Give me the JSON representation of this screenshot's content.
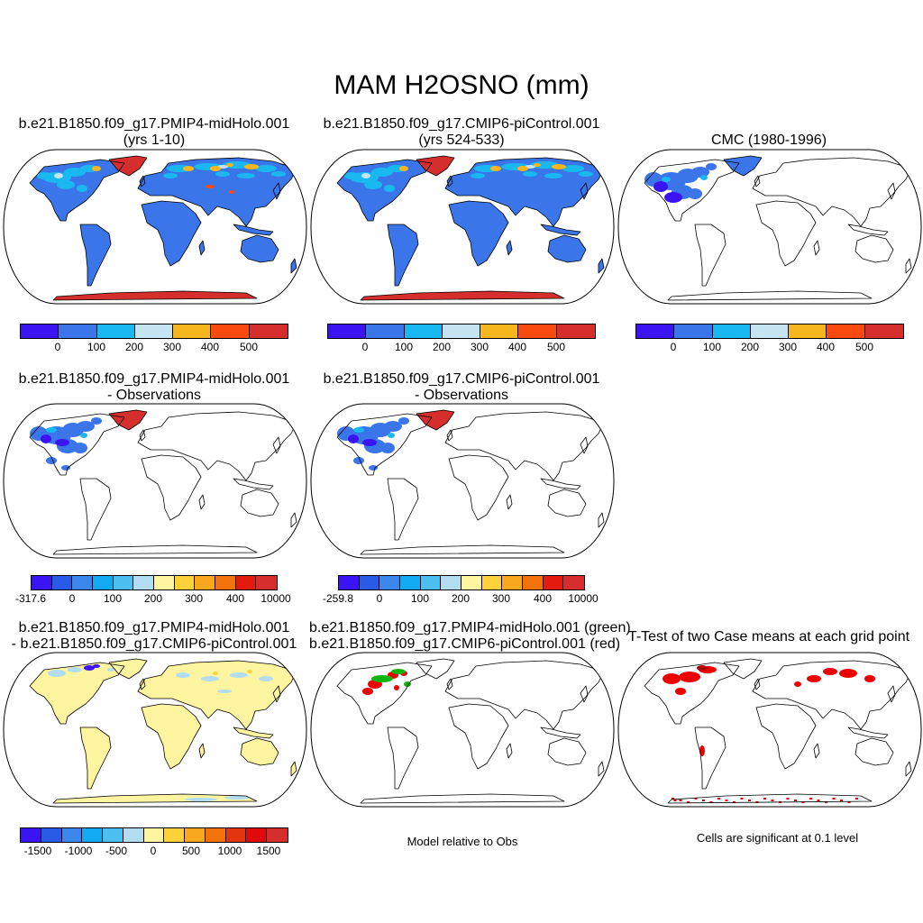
{
  "figure": {
    "title": "MAM H2OSNO (mm)"
  },
  "colors": {
    "seq7": [
      "#3a14f2",
      "#3a76ea",
      "#1ab8f0",
      "#c4e4f2",
      "#f7b61d",
      "#fa4a10",
      "#d62d2d"
    ],
    "diff12": [
      "#3a14f2",
      "#2a5ae8",
      "#3a86ec",
      "#12aaf2",
      "#4cc0f0",
      "#b2dcf0",
      "#fff4a0",
      "#ffd23c",
      "#f8a81c",
      "#f4720c",
      "#e41a0e",
      "#d62d2d"
    ],
    "diff13": [
      "#3a14f2",
      "#2a5ae8",
      "#3a86ec",
      "#12aaf2",
      "#4cc0f0",
      "#b2dcf0",
      "#fff4a0",
      "#ffd23c",
      "#f8a81c",
      "#f4720c",
      "#e4360e",
      "#e10a0a",
      "#d62d2d"
    ],
    "land_base": "#3a76ea",
    "diff_land": "#fff4a0",
    "ice_cap": "#d62d2d",
    "green_overlay": "#0fb40f",
    "red_overlay": "#ee0000"
  },
  "panels": [
    {
      "id": "p1",
      "title": [
        "b.e21.B1850.f09_g17.PMIP4-midHolo.001",
        "(yrs 1-10)"
      ],
      "colorbar": {
        "labels": [
          "0",
          "100",
          "200",
          "300",
          "400",
          "500"
        ]
      }
    },
    {
      "id": "p2",
      "title": [
        "b.e21.B1850.f09_g17.CMIP6-piControl.001",
        "(yrs 524-533)"
      ],
      "colorbar": {
        "labels": [
          "0",
          "100",
          "200",
          "300",
          "400",
          "500"
        ]
      }
    },
    {
      "id": "p3",
      "title": [
        "CMC (1980-1996)"
      ],
      "colorbar": {
        "labels": [
          "0",
          "100",
          "200",
          "300",
          "400",
          "500"
        ]
      }
    },
    {
      "id": "p4",
      "title": [
        "b.e21.B1850.f09_g17.PMIP4-midHolo.001",
        "- Observations"
      ],
      "colorbar": {
        "labels": [
          "-317.6",
          "0",
          "100",
          "200",
          "300",
          "400",
          "10000"
        ]
      }
    },
    {
      "id": "p5",
      "title": [
        "b.e21.B1850.f09_g17.CMIP6-piControl.001",
        "- Observations"
      ],
      "colorbar": {
        "labels": [
          "-259.8",
          "0",
          "100",
          "200",
          "300",
          "400",
          "10000"
        ]
      }
    },
    {
      "id": "p7",
      "title": [
        "b.e21.B1850.f09_g17.PMIP4-midHolo.001",
        "- b.e21.B1850.f09_g17.CMIP6-piControl.001"
      ],
      "colorbar": {
        "labels": [
          "-1500",
          "-1000",
          "-500",
          "0",
          "500",
          "1000",
          "1500"
        ]
      }
    },
    {
      "id": "p8",
      "title": [
        "b.e21.B1850.f09_g17.PMIP4-midHolo.001 (green)",
        "b.e21.B1850.f09_g17.CMIP6-piControl.001 (red)"
      ],
      "note": "Model relative to Obs"
    },
    {
      "id": "p9",
      "title": [
        "T-Test of two Case means at each grid point"
      ],
      "note": "Cells are significant at 0.1 level"
    }
  ]
}
